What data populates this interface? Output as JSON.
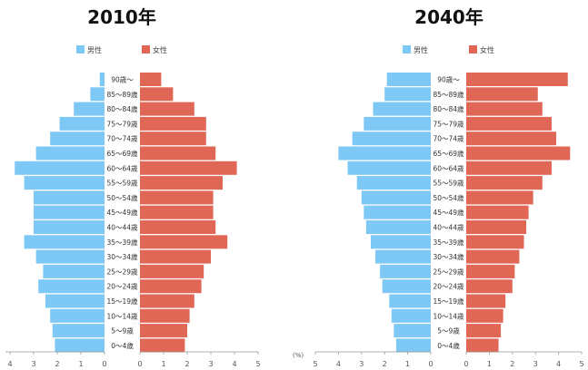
{
  "chart_data": [
    {
      "type": "bar",
      "orientation": "horizontal-butterfly",
      "title": "2010年",
      "categories": [
        "0～4歳",
        "5～9歳",
        "10～14歳",
        "15～19歳",
        "20～24歳",
        "25～29歳",
        "30～34歳",
        "35～39歳",
        "40～44歳",
        "45～49歳",
        "50～54歳",
        "55～59歳",
        "60～64歳",
        "65～69歳",
        "70～74歳",
        "75～79歳",
        "80～84歳",
        "85～89歳",
        "90歳～"
      ],
      "series": [
        {
          "name": "男性",
          "color": "#7ec8f5",
          "values": [
            2.1,
            2.2,
            2.3,
            2.5,
            2.8,
            2.6,
            2.9,
            3.4,
            3.0,
            3.0,
            3.0,
            3.4,
            3.8,
            2.9,
            2.3,
            1.9,
            1.3,
            0.6,
            0.2
          ]
        },
        {
          "name": "女性",
          "color": "#e06656",
          "values": [
            1.9,
            2.0,
            2.1,
            2.3,
            2.6,
            2.7,
            3.0,
            3.7,
            3.2,
            3.1,
            3.1,
            3.5,
            4.1,
            3.2,
            2.8,
            2.8,
            2.3,
            1.4,
            0.9
          ]
        }
      ],
      "xlim": [
        0,
        5
      ],
      "left_ticks": [
        "4",
        "3",
        "2",
        "1",
        "0"
      ],
      "right_ticks": [
        "0",
        "1",
        "2",
        "3",
        "4",
        "5"
      ]
    },
    {
      "type": "bar",
      "orientation": "horizontal-butterfly",
      "title": "2040年",
      "categories": [
        "0～4歳",
        "5～9歳",
        "10～14歳",
        "15～19歳",
        "20～24歳",
        "25～29歳",
        "30～34歳",
        "35～39歳",
        "40～44歳",
        "45～49歳",
        "50～54歳",
        "55～59歳",
        "60～64歳",
        "65～69歳",
        "70～74歳",
        "75～79歳",
        "80～84歳",
        "85～89歳",
        "90歳～"
      ],
      "series": [
        {
          "name": "男性",
          "color": "#7ec8f5",
          "values": [
            1.5,
            1.6,
            1.7,
            1.8,
            2.1,
            2.2,
            2.4,
            2.6,
            2.8,
            2.9,
            3.0,
            3.2,
            3.6,
            4.0,
            3.4,
            2.9,
            2.5,
            2.0,
            1.9
          ]
        },
        {
          "name": "女性",
          "color": "#e06656",
          "values": [
            1.4,
            1.5,
            1.6,
            1.7,
            2.0,
            2.1,
            2.3,
            2.5,
            2.6,
            2.7,
            2.9,
            3.3,
            3.7,
            4.5,
            3.9,
            3.7,
            3.3,
            3.1,
            4.4
          ]
        }
      ],
      "xlim": [
        0,
        5
      ],
      "unit": "(%)",
      "left_ticks": [
        "5",
        "4",
        "3",
        "2",
        "1",
        "0"
      ],
      "right_ticks": [
        "0",
        "1",
        "2",
        "3",
        "4",
        "5"
      ]
    }
  ]
}
